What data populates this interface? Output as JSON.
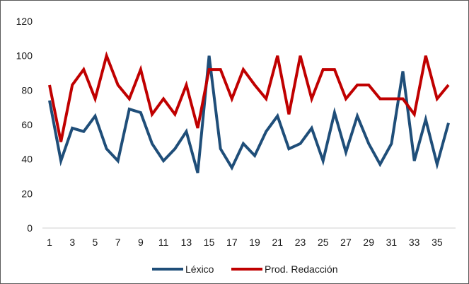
{
  "chart_data": {
    "type": "line",
    "x": [
      1,
      2,
      3,
      4,
      5,
      6,
      7,
      8,
      9,
      10,
      11,
      12,
      13,
      14,
      15,
      16,
      17,
      18,
      19,
      20,
      21,
      22,
      23,
      24,
      25,
      26,
      27,
      28,
      29,
      30,
      31,
      32,
      33,
      34,
      35,
      36
    ],
    "x_tick_labels": [
      "1",
      "3",
      "5",
      "7",
      "9",
      "11",
      "13",
      "15",
      "17",
      "19",
      "21",
      "23",
      "25",
      "27",
      "29",
      "31",
      "33",
      "35"
    ],
    "y_tick_labels": [
      "0",
      "20",
      "40",
      "60",
      "80",
      "100",
      "120"
    ],
    "ylim": [
      0,
      120
    ],
    "grid": false,
    "legend_position": "bottom",
    "series": [
      {
        "name": "Léxico",
        "color": "#1f4e79",
        "values": [
          74,
          39,
          58,
          56,
          65,
          46,
          39,
          69,
          67,
          49,
          39,
          46,
          56,
          32,
          100,
          46,
          35,
          49,
          42,
          56,
          65,
          46,
          49,
          58,
          39,
          67,
          44,
          65,
          49,
          37,
          49,
          91,
          39,
          63,
          37,
          61
        ]
      },
      {
        "name": "Prod. Redacción",
        "color": "#c00000",
        "values": [
          83,
          50,
          83,
          92,
          75,
          100,
          83,
          75,
          92,
          66,
          75,
          66,
          83,
          58,
          92,
          92,
          75,
          92,
          83,
          75,
          100,
          66,
          100,
          75,
          92,
          92,
          75,
          83,
          83,
          75,
          75,
          75,
          66,
          100,
          75,
          83
        ]
      }
    ]
  }
}
